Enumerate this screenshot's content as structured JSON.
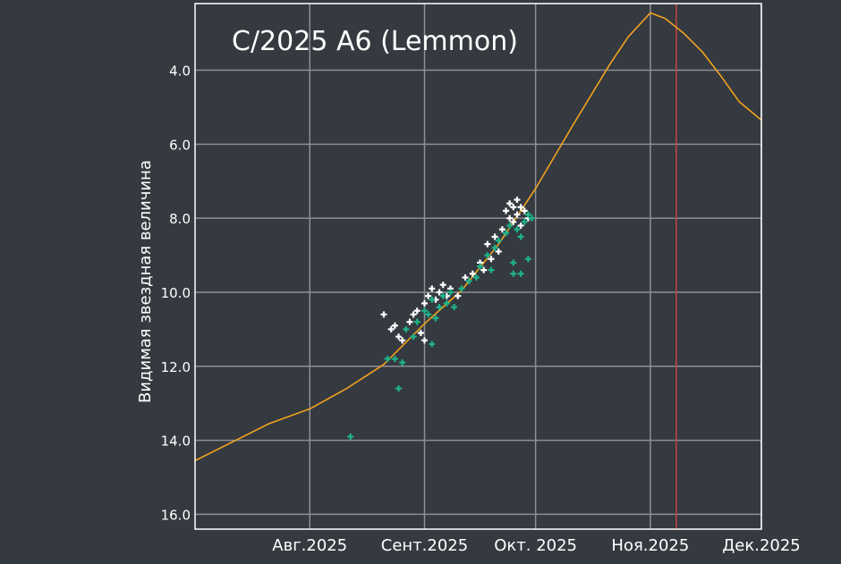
{
  "chart_data": {
    "type": "scatter",
    "title": "C/2025 A6 (Lemmon)",
    "ylabel": "Видимая звездная величина",
    "xlabel": "",
    "y_inverted": true,
    "ylim": [
      16.4,
      2.2
    ],
    "xlim": [
      "2025-07-01",
      "2025-12-01"
    ],
    "yticks": [
      4.0,
      6.0,
      8.0,
      10.0,
      12.0,
      14.0,
      16.0
    ],
    "xticks": [
      {
        "date": "2025-08-01",
        "label": "Авг.2025"
      },
      {
        "date": "2025-09-01",
        "label": "Сент.2025"
      },
      {
        "date": "2025-10-01",
        "label": "Окт. 2025"
      },
      {
        "date": "2025-11-01",
        "label": "Ноя.2025"
      },
      {
        "date": "2025-12-01",
        "label": "Дек.2025"
      }
    ],
    "grid": true,
    "today_marker": "2025-11-08",
    "colors": {
      "background": "#353940",
      "plot_border": "#ffffff",
      "grid": "#8c8f94",
      "curve": "#f0a31e",
      "marker_line": "#c0473e",
      "series_white": "#ffffff",
      "series_teal": "#1db48a",
      "text": "#ffffff"
    },
    "series": [
      {
        "type": "line",
        "color": "#f0a31e",
        "points": [
          [
            "2025-07-01",
            14.55
          ],
          [
            "2025-07-11",
            14.05
          ],
          [
            "2025-07-21",
            13.55
          ],
          [
            "2025-08-01",
            13.15
          ],
          [
            "2025-08-11",
            12.6
          ],
          [
            "2025-08-21",
            11.95
          ],
          [
            "2025-09-01",
            10.85
          ],
          [
            "2025-09-11",
            9.95
          ],
          [
            "2025-09-21",
            8.7
          ],
          [
            "2025-10-01",
            7.2
          ],
          [
            "2025-10-11",
            5.5
          ],
          [
            "2025-10-21",
            3.85
          ],
          [
            "2025-10-26",
            3.1
          ],
          [
            "2025-11-01",
            2.45
          ],
          [
            "2025-11-05",
            2.6
          ],
          [
            "2025-11-10",
            3.0
          ],
          [
            "2025-11-15",
            3.5
          ],
          [
            "2025-11-20",
            4.15
          ],
          [
            "2025-11-25",
            4.85
          ],
          [
            "2025-12-01",
            5.35
          ]
        ]
      },
      {
        "type": "scatter",
        "color": "#ffffff",
        "points": [
          [
            "2025-08-21",
            10.6
          ],
          [
            "2025-08-23",
            11.0
          ],
          [
            "2025-08-24",
            10.9
          ],
          [
            "2025-08-25",
            11.2
          ],
          [
            "2025-08-26",
            11.3
          ],
          [
            "2025-08-28",
            10.8
          ],
          [
            "2025-08-29",
            10.6
          ],
          [
            "2025-08-30",
            10.5
          ],
          [
            "2025-08-31",
            11.1
          ],
          [
            "2025-09-01",
            10.3
          ],
          [
            "2025-09-01",
            11.3
          ],
          [
            "2025-09-02",
            10.1
          ],
          [
            "2025-09-03",
            9.9
          ],
          [
            "2025-09-04",
            10.2
          ],
          [
            "2025-09-05",
            10.0
          ],
          [
            "2025-09-06",
            9.8
          ],
          [
            "2025-09-07",
            10.1
          ],
          [
            "2025-09-08",
            9.9
          ],
          [
            "2025-09-10",
            10.1
          ],
          [
            "2025-09-12",
            9.6
          ],
          [
            "2025-09-14",
            9.5
          ],
          [
            "2025-09-16",
            9.2
          ],
          [
            "2025-09-17",
            9.4
          ],
          [
            "2025-09-18",
            8.7
          ],
          [
            "2025-09-19",
            9.1
          ],
          [
            "2025-09-20",
            8.5
          ],
          [
            "2025-09-21",
            8.9
          ],
          [
            "2025-09-22",
            8.3
          ],
          [
            "2025-09-23",
            7.8
          ],
          [
            "2025-09-24",
            7.6
          ],
          [
            "2025-09-24",
            8.0
          ],
          [
            "2025-09-25",
            7.7
          ],
          [
            "2025-09-25",
            8.1
          ],
          [
            "2025-09-26",
            7.5
          ],
          [
            "2025-09-26",
            7.9
          ],
          [
            "2025-09-27",
            7.7
          ],
          [
            "2025-09-27",
            8.2
          ],
          [
            "2025-09-28",
            7.8
          ],
          [
            "2025-09-29",
            8.0
          ]
        ]
      },
      {
        "type": "scatter",
        "color": "#1db48a",
        "points": [
          [
            "2025-08-12",
            13.9
          ],
          [
            "2025-08-22",
            11.8
          ],
          [
            "2025-08-24",
            11.8
          ],
          [
            "2025-08-26",
            11.9
          ],
          [
            "2025-08-25",
            12.6
          ],
          [
            "2025-08-27",
            11.0
          ],
          [
            "2025-08-29",
            11.2
          ],
          [
            "2025-08-30",
            10.8
          ],
          [
            "2025-09-01",
            10.5
          ],
          [
            "2025-09-02",
            10.6
          ],
          [
            "2025-09-03",
            10.2
          ],
          [
            "2025-09-03",
            11.4
          ],
          [
            "2025-09-04",
            10.7
          ],
          [
            "2025-09-05",
            10.4
          ],
          [
            "2025-09-06",
            10.1
          ],
          [
            "2025-09-07",
            10.3
          ],
          [
            "2025-09-08",
            10.0
          ],
          [
            "2025-09-09",
            10.4
          ],
          [
            "2025-09-11",
            9.9
          ],
          [
            "2025-09-13",
            9.7
          ],
          [
            "2025-09-15",
            9.6
          ],
          [
            "2025-09-16",
            9.3
          ],
          [
            "2025-09-18",
            9.0
          ],
          [
            "2025-09-19",
            9.4
          ],
          [
            "2025-09-20",
            8.8
          ],
          [
            "2025-09-21",
            8.6
          ],
          [
            "2025-09-23",
            8.4
          ],
          [
            "2025-09-24",
            8.2
          ],
          [
            "2025-09-25",
            9.2
          ],
          [
            "2025-09-25",
            9.5
          ],
          [
            "2025-09-26",
            8.3
          ],
          [
            "2025-09-27",
            8.5
          ],
          [
            "2025-09-27",
            9.5
          ],
          [
            "2025-09-28",
            8.1
          ],
          [
            "2025-09-29",
            7.9
          ],
          [
            "2025-09-29",
            9.1
          ],
          [
            "2025-09-30",
            8.0
          ]
        ]
      }
    ]
  }
}
